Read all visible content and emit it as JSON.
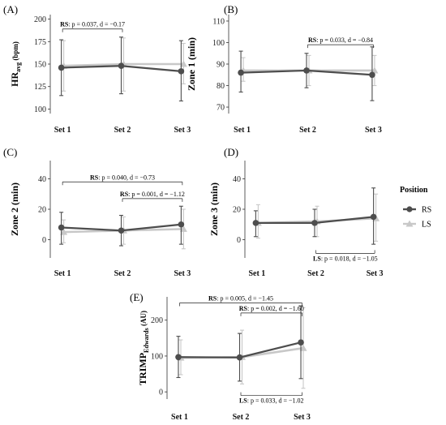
{
  "legend": {
    "title": "Position",
    "items": [
      {
        "label": "RS",
        "color": "#4d4d4d",
        "shape": "circle"
      },
      {
        "label": "LS",
        "color": "#c8c8c8",
        "shape": "triangle"
      }
    ]
  },
  "chart_data": [
    {
      "panel": "(A)",
      "type": "line",
      "ylabel_main": "HR",
      "ylabel_sub": "avg",
      "ylabel_tail": " (bpm)",
      "ylim": [
        95,
        205
      ],
      "yticks": [
        "100",
        "125",
        "150",
        "175",
        "200"
      ],
      "categories": [
        "Set 1",
        "Set 2",
        "Set 3"
      ],
      "series": [
        {
          "name": "RS",
          "mean": [
            146,
            148,
            142
          ],
          "lower": [
            115,
            117,
            109
          ],
          "upper": [
            177,
            180,
            176
          ]
        },
        {
          "name": "LS",
          "mean": [
            148,
            150,
            150
          ],
          "lower": [
            120,
            120,
            128
          ],
          "upper": [
            176,
            179,
            173
          ]
        }
      ],
      "annotations": [
        {
          "group": "RS",
          "text": ": p = 0.037, d = −0.17",
          "from": "Set 1",
          "to": "Set 2",
          "y": 189,
          "tick": "down"
        }
      ]
    },
    {
      "panel": "(B)",
      "type": "line",
      "ylabel_main": "Zone 1 (min)",
      "ylim": [
        67,
        113
      ],
      "yticks": [
        "70",
        "80",
        "90",
        "100",
        "110"
      ],
      "categories": [
        "Set 1",
        "Set 2",
        "Set 3"
      ],
      "series": [
        {
          "name": "RS",
          "mean": [
            86,
            87,
            85
          ],
          "lower": [
            77,
            79,
            73
          ],
          "upper": [
            96,
            95,
            98
          ]
        },
        {
          "name": "LS",
          "mean": [
            87,
            87,
            87
          ],
          "lower": [
            82,
            80,
            80
          ],
          "upper": [
            93,
            94,
            94
          ]
        }
      ],
      "annotations": [
        {
          "group": "RS",
          "text": ": p = 0.033, d = −0.84",
          "from": "Set 2",
          "to": "Set 3",
          "y": 99,
          "tick": "down"
        }
      ]
    },
    {
      "panel": "(C)",
      "type": "line",
      "ylabel_main": "Zone 2 (min)",
      "ylim": [
        -12,
        52
      ],
      "yticks": [
        "0",
        "20",
        "40"
      ],
      "categories": [
        "Set 1",
        "Set 2",
        "Set 3"
      ],
      "series": [
        {
          "name": "RS",
          "mean": [
            8,
            6,
            10
          ],
          "lower": [
            -3,
            -4,
            -3
          ],
          "upper": [
            18,
            16,
            22
          ]
        },
        {
          "name": "LS",
          "mean": [
            5,
            6,
            7
          ],
          "lower": [
            -2,
            -3,
            -6
          ],
          "upper": [
            13,
            15,
            20
          ]
        }
      ],
      "annotations": [
        {
          "group": "RS",
          "text": ": p = 0.040, d = −0.73",
          "from": "Set 1",
          "to": "Set 3",
          "y": 38,
          "tick": "down"
        },
        {
          "group": "RS",
          "text": ": p = 0.001, d = −1.12",
          "from": "Set 2",
          "to": "Set 3",
          "y": 27,
          "tick": "down"
        }
      ]
    },
    {
      "panel": "(D)",
      "type": "line",
      "ylabel_main": "Zone 3 (min)",
      "ylim": [
        -12,
        52
      ],
      "yticks": [
        "0",
        "20",
        "40"
      ],
      "categories": [
        "Set 1",
        "Set 2",
        "Set 3"
      ],
      "series": [
        {
          "name": "RS",
          "mean": [
            11,
            11,
            15
          ],
          "lower": [
            2,
            2,
            -3
          ],
          "upper": [
            19,
            20,
            34
          ]
        },
        {
          "name": "LS",
          "mean": [
            11,
            12,
            14
          ],
          "lower": [
            1,
            2,
            -1
          ],
          "upper": [
            23,
            22,
            30
          ]
        }
      ],
      "annotations": [
        {
          "group": "LS",
          "text": ": p = 0.018, d = −1.05",
          "from": "Set 2",
          "to": "Set 3",
          "y": -9,
          "tick": "up"
        }
      ]
    },
    {
      "panel": "(E)",
      "type": "line",
      "ylabel_main": "TRIMP",
      "ylabel_sub": "Edwards",
      "ylabel_tail": " (AU)",
      "ylim": [
        -20,
        265
      ],
      "yticks": [
        "0",
        "100",
        "200"
      ],
      "categories": [
        "Set 1",
        "Set 2",
        "Set 3"
      ],
      "series": [
        {
          "name": "RS",
          "mean": [
            97,
            96,
            138
          ],
          "lower": [
            40,
            30,
            37
          ],
          "upper": [
            155,
            163,
            240
          ]
        },
        {
          "name": "LS",
          "mean": [
            95,
            97,
            122
          ],
          "lower": [
            48,
            22,
            10
          ],
          "upper": [
            145,
            172,
            235
          ]
        }
      ],
      "annotations": [
        {
          "group": "RS",
          "text": ": p = 0.005, d = −1.45",
          "from": "Set 1",
          "to": "Set 3",
          "y": 248,
          "tick": "down"
        },
        {
          "group": "RS",
          "text": ": p = 0.002, d = −1.60",
          "from": "Set 2",
          "to": "Set 3",
          "y": 220,
          "tick": "down"
        },
        {
          "group": "LS",
          "text": ": p = 0.033, d = −1.02",
          "from": "Set 2",
          "to": "Set 3",
          "y": -10,
          "tick": "up"
        }
      ]
    }
  ]
}
